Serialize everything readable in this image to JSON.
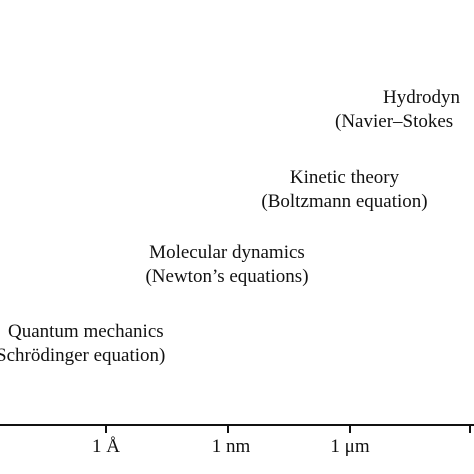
{
  "regimes": [
    {
      "id": "hydrodynamics",
      "title": "Hydrodyn",
      "subtitle": "(Navier–Stokes"
    },
    {
      "id": "kinetic",
      "title": "Kinetic theory",
      "subtitle": "(Boltzmann equation)"
    },
    {
      "id": "molecular",
      "title": "Molecular dynamics",
      "subtitle": "(Newton’s equations)"
    },
    {
      "id": "quantum",
      "title": "Quantum mechanics",
      "subtitle": "Schrödinger equation)"
    }
  ],
  "axis": {
    "ticks": [
      {
        "label": "1 Å"
      },
      {
        "label": "1 nm"
      },
      {
        "label": "1 μm"
      }
    ],
    "line_color": "#111111"
  }
}
